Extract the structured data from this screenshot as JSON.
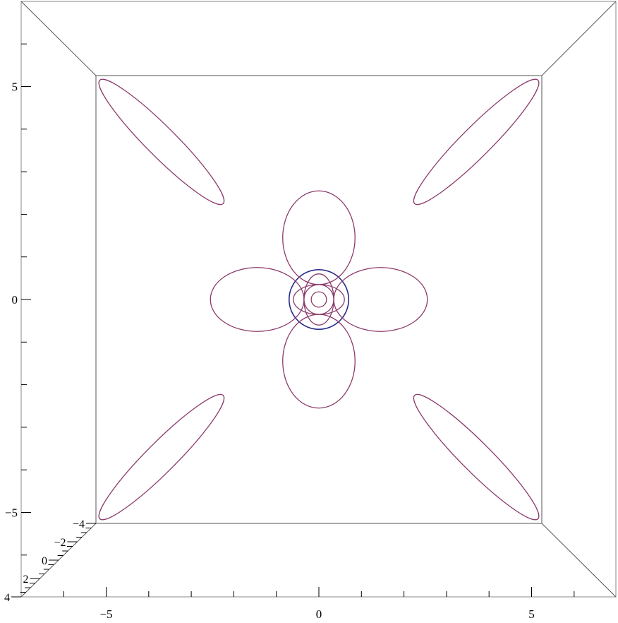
{
  "chart_data": {
    "type": "line",
    "view": "3d-box-top-view",
    "title": "",
    "xlabel": "",
    "ylabel": "",
    "zlabel": "",
    "x_range": [
      -5,
      7
    ],
    "y_range": [
      -5,
      7
    ],
    "xlim": [
      -5,
      5
    ],
    "ylim": [
      -5,
      5
    ],
    "x_ticks": [
      {
        "value": -5,
        "label": "−5"
      },
      {
        "value": 0,
        "label": "0"
      },
      {
        "value": 5,
        "label": "5"
      }
    ],
    "y_ticks": [
      {
        "value": 5,
        "label": "5"
      },
      {
        "value": 0,
        "label": "0"
      },
      {
        "value": -5,
        "label": "−5"
      }
    ],
    "z_ticks": [
      {
        "value": -4,
        "label": "−4"
      },
      {
        "value": -2,
        "label": "−2"
      },
      {
        "value": 0,
        "label": "0"
      },
      {
        "value": 2,
        "label": "2"
      },
      {
        "value": 4,
        "label": "4"
      }
    ],
    "grid": false,
    "legend": "none",
    "colors": {
      "curve": "#8b3a6a",
      "circle": "#2a2a8c",
      "box": "#555555"
    },
    "series": [
      {
        "kind": "circle",
        "cx": 0,
        "cy": 0,
        "r": 0.7,
        "color": "#2a2a8c"
      },
      {
        "kind": "ellipse",
        "cx": 3.7,
        "cy": 3.7,
        "rx": 0.35,
        "ry": 2.05,
        "angle": 45,
        "color": "#8b3a6a"
      },
      {
        "kind": "ellipse",
        "cx": -3.7,
        "cy": 3.7,
        "rx": 0.35,
        "ry": 2.05,
        "angle": -45,
        "color": "#8b3a6a"
      },
      {
        "kind": "ellipse",
        "cx": -3.7,
        "cy": -3.7,
        "rx": 0.35,
        "ry": 2.05,
        "angle": 45,
        "color": "#8b3a6a"
      },
      {
        "kind": "ellipse",
        "cx": 3.7,
        "cy": -3.7,
        "rx": 0.35,
        "ry": 2.05,
        "angle": -45,
        "color": "#8b3a6a"
      },
      {
        "kind": "ellipse",
        "cx": 0,
        "cy": 1.45,
        "rx": 0.85,
        "ry": 1.1,
        "angle": 0,
        "color": "#8b3a6a"
      },
      {
        "kind": "ellipse",
        "cx": 0,
        "cy": -1.45,
        "rx": 0.85,
        "ry": 1.1,
        "angle": 0,
        "color": "#8b3a6a"
      },
      {
        "kind": "ellipse",
        "cx": 1.45,
        "cy": 0,
        "rx": 1.1,
        "ry": 0.75,
        "angle": 0,
        "color": "#8b3a6a"
      },
      {
        "kind": "ellipse",
        "cx": -1.45,
        "cy": 0,
        "rx": 1.1,
        "ry": 0.75,
        "angle": 0,
        "color": "#8b3a6a"
      },
      {
        "kind": "ellipse",
        "cx": 0,
        "cy": 0,
        "rx": 0.35,
        "ry": 0.35,
        "angle": 0,
        "color": "#8b3a6a"
      },
      {
        "kind": "ellipse",
        "cx": 0,
        "cy": 0,
        "rx": 0.18,
        "ry": 0.18,
        "angle": 0,
        "color": "#8b3a6a"
      },
      {
        "kind": "ellipse",
        "cx": 0,
        "cy": 0,
        "rx": 0.35,
        "ry": 0.6,
        "angle": 0,
        "color": "#8b3a6a"
      },
      {
        "kind": "ellipse",
        "cx": 0,
        "cy": 0,
        "rx": 0.6,
        "ry": 0.35,
        "angle": 0,
        "color": "#8b3a6a"
      }
    ]
  }
}
